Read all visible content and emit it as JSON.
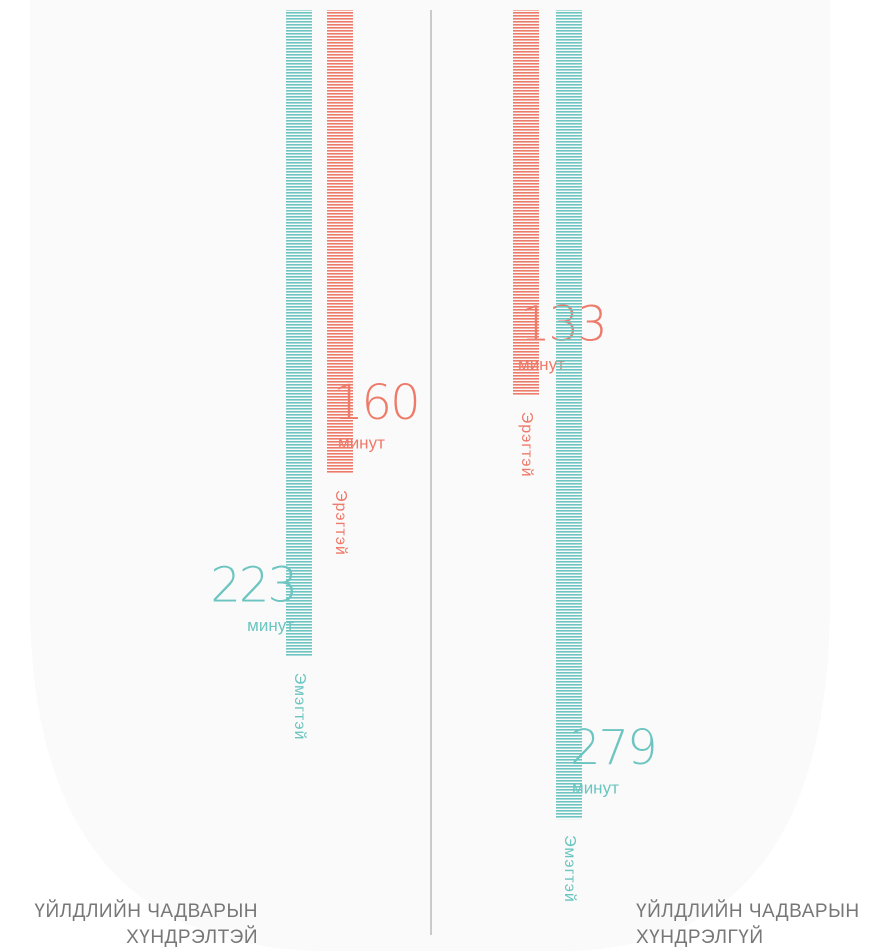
{
  "chart_data": {
    "type": "bar",
    "unit": "минут",
    "groups": [
      {
        "label": [
          "ҮЙЛДЛИЙН ЧАДВАРЫН",
          "ХҮНДРЭЛТЭЙ"
        ],
        "series": [
          {
            "name": "Эмэгтэй",
            "color": "#6cc5c0",
            "value": 223
          },
          {
            "name": "Эрэгтэй",
            "color": "#ee7a6a",
            "value": 160
          }
        ]
      },
      {
        "label": [
          "ҮЙЛДЛИЙН ЧАДВАРЫН",
          "ХҮНДРЭЛГҮЙ"
        ],
        "series": [
          {
            "name": "Эрэгтэй",
            "color": "#ee7a6a",
            "value": 133
          },
          {
            "name": "Эмэгтэй",
            "color": "#6cc5c0",
            "value": 279
          }
        ]
      }
    ]
  }
}
